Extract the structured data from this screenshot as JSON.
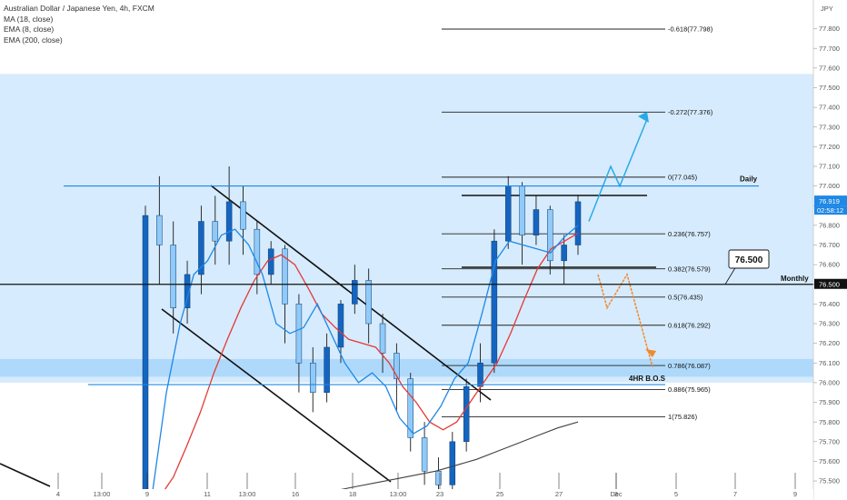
{
  "header": {
    "symbol_title": "Australian Dollar / Japanese Yen, 4h, FXCM",
    "indicators": [
      "MA (18, close)",
      "EMA (8, close)",
      "EMA (200, close)"
    ],
    "currency": "JPY"
  },
  "price_axis": {
    "ticks": [
      "77.800",
      "77.700",
      "77.600",
      "77.500",
      "77.400",
      "77.300",
      "77.200",
      "77.100",
      "77.000",
      "76.900",
      "76.800",
      "76.700",
      "76.600",
      "76.500",
      "76.400",
      "76.300",
      "76.200",
      "76.100",
      "76.000",
      "75.900",
      "75.800",
      "75.700",
      "75.600",
      "75.500"
    ],
    "current_price": "76.919",
    "countdown": "02:58:12",
    "level_tag": "76.500"
  },
  "time_axis": {
    "ticks": [
      "4",
      "13:00",
      "9",
      "11",
      "13:00",
      "16",
      "18",
      "13:00",
      "23",
      "25",
      "27",
      "Dec",
      "3",
      "5",
      "7",
      "9"
    ]
  },
  "annotations": {
    "daily_label": "Daily",
    "monthly_label": "Monthly",
    "bos_label": "4HR B.O.S",
    "callout": "76.500"
  },
  "colors": {
    "zone_fill": "#bbdefb",
    "bullish": "#1565c0",
    "bearish": "#90caf9",
    "ema8": "#1e88e5",
    "ma18": "#e53935",
    "ema200": "#424242",
    "projection_up": "#29a9e8",
    "projection_down": "#ef8a2c"
  },
  "chart_data": {
    "type": "candlestick",
    "title": "Australian Dollar / Japanese Yen, 4h, FXCM",
    "ylim": [
      75.43,
      77.93
    ],
    "series": [
      {
        "name": "MA (18, close)",
        "values": [
          75.42,
          75.52,
          75.68,
          75.85,
          76.05,
          76.22,
          76.38,
          76.52,
          76.62,
          76.65,
          76.6,
          76.48,
          76.35,
          76.28,
          76.22,
          76.2,
          76.18,
          76.1,
          75.98,
          75.9,
          75.8,
          75.76,
          75.8,
          75.9,
          76.0,
          76.1,
          76.25,
          76.42,
          76.58,
          76.68,
          76.72,
          76.76
        ]
      },
      {
        "name": "EMA (8, close)",
        "values": [
          75.45,
          75.95,
          76.3,
          76.55,
          76.62,
          76.75,
          76.78,
          76.7,
          76.55,
          76.3,
          76.25,
          76.28,
          76.4,
          76.25,
          76.1,
          76.0,
          76.05,
          75.98,
          75.82,
          75.74,
          75.78,
          75.88,
          76.02,
          76.1,
          76.35,
          76.62,
          76.72,
          76.7,
          76.68,
          76.66,
          76.74,
          76.8
        ]
      },
      {
        "name": "EMA (200, close)",
        "values": [
          75.45,
          75.47,
          75.49,
          75.51,
          75.53,
          75.55,
          75.58,
          75.61,
          75.65,
          75.69,
          75.73,
          75.77,
          75.8
        ]
      }
    ],
    "fibonacci": [
      {
        "ratio": "-0.618",
        "price": 77.798,
        "label": "-0.618(77.798)"
      },
      {
        "ratio": "-0.272",
        "price": 77.376,
        "label": "-0.272(77.376)"
      },
      {
        "ratio": "0",
        "price": 77.045,
        "label": "0(77.045)"
      },
      {
        "ratio": "0.236",
        "price": 76.757,
        "label": "0.236(76.757)"
      },
      {
        "ratio": "0.382",
        "price": 76.579,
        "label": "0.382(76.579)"
      },
      {
        "ratio": "0.5",
        "price": 76.435,
        "label": "0.5(76.435)"
      },
      {
        "ratio": "0.618",
        "price": 76.292,
        "label": "0.618(76.292)"
      },
      {
        "ratio": "0.786",
        "price": 76.087,
        "label": "0.786(76.087)"
      },
      {
        "ratio": "0.886",
        "price": 75.965,
        "label": "0.886(75.965)"
      },
      {
        "ratio": "1",
        "price": 75.826,
        "label": "1(75.826)"
      }
    ],
    "levels": [
      {
        "name": "Daily",
        "price": 77.0
      },
      {
        "name": "Monthly",
        "price": 76.5
      }
    ],
    "zones": [
      {
        "from": 76.0,
        "to": 77.57
      },
      {
        "from": 76.03,
        "to": 76.12
      }
    ],
    "candles": [
      [
        75.45,
        76.85,
        76.9,
        75.42
      ],
      [
        76.85,
        76.7,
        77.05,
        76.5
      ],
      [
        76.7,
        76.38,
        76.82,
        76.25
      ],
      [
        76.38,
        76.55,
        76.62,
        76.3
      ],
      [
        76.55,
        76.82,
        76.9,
        76.45
      ],
      [
        76.82,
        76.72,
        76.95,
        76.6
      ],
      [
        76.72,
        76.92,
        77.1,
        76.6
      ],
      [
        76.92,
        76.78,
        77.0,
        76.65
      ],
      [
        76.78,
        76.55,
        76.82,
        76.45
      ],
      [
        76.55,
        76.68,
        76.72,
        76.5
      ],
      [
        76.68,
        76.4,
        76.7,
        76.2
      ],
      [
        76.4,
        76.1,
        76.45,
        75.95
      ],
      [
        76.1,
        75.95,
        76.18,
        75.85
      ],
      [
        75.95,
        76.18,
        76.25,
        75.9
      ],
      [
        76.18,
        76.4,
        76.42,
        76.1
      ],
      [
        76.4,
        76.52,
        76.6,
        76.35
      ],
      [
        76.52,
        76.3,
        76.58,
        76.2
      ],
      [
        76.3,
        76.15,
        76.35,
        76.05
      ],
      [
        76.15,
        76.02,
        76.2,
        75.85
      ],
      [
        76.02,
        75.72,
        76.05,
        75.65
      ],
      [
        75.72,
        75.55,
        75.8,
        75.48
      ],
      [
        75.55,
        75.48,
        75.62,
        75.42
      ],
      [
        75.48,
        75.7,
        75.75,
        75.45
      ],
      [
        75.7,
        75.98,
        76.02,
        75.65
      ],
      [
        75.98,
        76.1,
        76.2,
        75.9
      ],
      [
        76.1,
        76.72,
        76.78,
        76.05
      ],
      [
        76.72,
        77.0,
        77.05,
        76.68
      ],
      [
        77.0,
        76.75,
        77.02,
        76.6
      ],
      [
        76.75,
        76.88,
        76.95,
        76.7
      ],
      [
        76.88,
        76.62,
        76.9,
        76.55
      ],
      [
        76.62,
        76.7,
        76.75,
        76.5
      ],
      [
        76.7,
        76.92,
        76.95,
        76.65
      ]
    ],
    "projections": [
      {
        "name": "bullish",
        "points": [
          [
            0,
            76.82
          ],
          [
            1,
            77.1
          ],
          [
            2,
            77.0
          ],
          [
            3,
            77.34
          ]
        ]
      },
      {
        "name": "bearish",
        "points": [
          [
            0,
            76.55
          ],
          [
            1,
            76.38
          ],
          [
            2,
            76.55
          ],
          [
            3,
            76.08
          ]
        ]
      }
    ]
  }
}
